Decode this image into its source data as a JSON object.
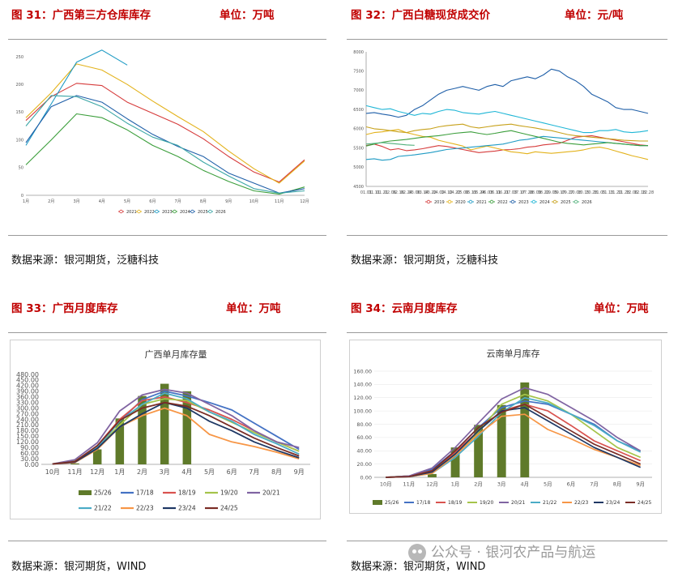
{
  "panels": [
    {
      "figure": "图 31：广西第三方仓库库存",
      "unit": "单位：万吨",
      "source": "数据来源：银河期货，泛糖科技",
      "chart_data": {
        "type": "line",
        "categories": [
          "1月",
          "2月",
          "3月",
          "4月",
          "5月",
          "6月",
          "7月",
          "8月",
          "9月",
          "10月",
          "11月",
          "12月"
        ],
        "ylim": [
          0,
          250
        ],
        "yticks": [
          0,
          50,
          100,
          150,
          200,
          250
        ],
        "legend_position": "bottom",
        "series": [
          {
            "name": "2021",
            "color": "#d63b3b",
            "values": [
              135,
              178,
              202,
              198,
              168,
              148,
              128,
              102,
              70,
              42,
              24,
              64
            ]
          },
          {
            "name": "2022",
            "color": "#e3b21b",
            "values": [
              140,
              185,
              237,
              226,
              200,
              170,
              142,
              115,
              80,
              48,
              22,
              62
            ]
          },
          {
            "name": "2023",
            "color": "#1f9bc4",
            "values": [
              90,
              165,
              240,
              262,
              235,
              null,
              null,
              null,
              null,
              null,
              null,
              null
            ]
          },
          {
            "name": "2024",
            "color": "#3b9e3b",
            "values": [
              55,
              100,
              147,
              140,
              118,
              90,
              70,
              45,
              25,
              8,
              2,
              15
            ]
          },
          {
            "name": "2025",
            "color": "#1f5fa8",
            "values": [
              95,
              160,
              180,
              168,
              138,
              110,
              88,
              70,
              40,
              22,
              4,
              12
            ]
          },
          {
            "name": "2026",
            "color": "#3ba6a6",
            "values": [
              125,
              180,
              178,
              160,
              130,
              105,
              90,
              60,
              35,
              12,
              4,
              8
            ]
          }
        ]
      }
    },
    {
      "figure": "图 32：广西白糖现货成交价",
      "unit": "单位：元/吨",
      "source": "数据来源：银河期货，泛糖科技",
      "chart_data": {
        "type": "line",
        "categories": [
          "01.01",
          "01.11",
          "01.21",
          "02.06",
          "02.16",
          "02.24",
          "03.06",
          "03.14",
          "03.22",
          "04.02",
          "04.12",
          "04.22",
          "05.06",
          "05.15",
          "05.24",
          "06.03",
          "06.11",
          "06.21",
          "07.03",
          "07.17",
          "07.28",
          "08.09",
          "08.22",
          "09.05",
          "09.17",
          "09.27",
          "10.08",
          "10.15",
          "10.28",
          "11.05",
          "11.13",
          "11.20",
          "11.28",
          "12.06",
          "12.18",
          "12.28"
        ],
        "ylim": [
          4500,
          8000
        ],
        "yticks": [
          4500,
          5000,
          5500,
          6000,
          6500,
          7000,
          7500,
          8000
        ],
        "legend_position": "bottom",
        "series": [
          {
            "name": "2019",
            "color": "#d63b3b",
            "values": [
              5560,
              5600,
              5540,
              5450,
              5480,
              5430,
              5450,
              5480,
              5520,
              5560,
              5540,
              5500,
              5460,
              5420,
              5380,
              5400,
              5420,
              5450,
              5460,
              5480,
              5520,
              5540,
              5580,
              5600,
              5620,
              5700,
              5780,
              5800,
              5820,
              5780,
              5740,
              5700,
              5660,
              5620,
              5580,
              5560
            ]
          },
          {
            "name": "2020",
            "color": "#e3b21b",
            "values": [
              5850,
              5900,
              5920,
              5950,
              5980,
              5900,
              5850,
              5800,
              5780,
              5700,
              5650,
              5600,
              5550,
              5450,
              5500,
              5550,
              5500,
              5450,
              5400,
              5380,
              5350,
              5400,
              5380,
              5360,
              5380,
              5400,
              5420,
              5450,
              5500,
              5520,
              5480,
              5420,
              5360,
              5300,
              5250,
              5200
            ]
          },
          {
            "name": "2021",
            "color": "#1f9bc4",
            "values": [
              5200,
              5220,
              5180,
              5200,
              5280,
              5300,
              5320,
              5350,
              5380,
              5420,
              5460,
              5480,
              5500,
              5520,
              5540,
              5560,
              5580,
              5600,
              5650,
              5700,
              5720,
              5760,
              5800,
              5780,
              5760,
              5740,
              5720,
              5700,
              5680,
              5660,
              5640,
              5620,
              5600,
              5580,
              5560,
              5560
            ]
          },
          {
            "name": "2022",
            "color": "#3b9e3b",
            "values": [
              5550,
              5600,
              5650,
              5680,
              5700,
              5720,
              5750,
              5780,
              5800,
              5820,
              5850,
              5880,
              5900,
              5920,
              5880,
              5850,
              5880,
              5920,
              5950,
              5900,
              5850,
              5800,
              5750,
              5700,
              5650,
              5620,
              5600,
              5580,
              5600,
              5620,
              5640,
              5620,
              5600,
              5580,
              5560,
              5560
            ]
          },
          {
            "name": "2023",
            "color": "#1f5fa8",
            "values": [
              6400,
              6420,
              6380,
              6350,
              6300,
              6350,
              6500,
              6600,
              6750,
              6900,
              7000,
              7050,
              7100,
              7050,
              7000,
              7100,
              7150,
              7100,
              7250,
              7300,
              7350,
              7300,
              7400,
              7550,
              7500,
              7350,
              7250,
              7100,
              6900,
              6800,
              6700,
              6550,
              6500,
              6500,
              6450,
              6400
            ]
          },
          {
            "name": "2024",
            "color": "#1fb6d6",
            "values": [
              6600,
              6550,
              6500,
              6520,
              6450,
              6400,
              6350,
              6400,
              6380,
              6450,
              6500,
              6480,
              6420,
              6400,
              6380,
              6420,
              6450,
              6400,
              6350,
              6300,
              6250,
              6200,
              6150,
              6100,
              6050,
              6000,
              5950,
              5900,
              5900,
              5950,
              5950,
              5980,
              5920,
              5900,
              5920,
              5950
            ]
          },
          {
            "name": "2025",
            "color": "#c7a11a",
            "values": [
              6050,
              6000,
              5980,
              5950,
              5920,
              5900,
              5950,
              5980,
              6000,
              6050,
              6080,
              6100,
              6120,
              6050,
              6020,
              6050,
              6080,
              6100,
              6120,
              6080,
              6050,
              6020,
              5980,
              5950,
              5900,
              5850,
              5820,
              5800,
              5780,
              5760,
              5740,
              5720,
              5700,
              5690,
              5680,
              5680
            ]
          },
          {
            "name": "2026",
            "color": "#4fb07a",
            "values": [
              5600,
              5620,
              5640,
              5620,
              5600,
              5580,
              5570,
              null,
              null,
              null,
              null,
              null,
              null,
              null,
              null,
              null,
              null,
              null,
              null,
              null,
              null,
              null,
              null,
              null,
              null,
              null,
              null,
              null,
              null,
              null,
              null,
              null,
              null,
              null,
              null,
              null
            ]
          }
        ]
      }
    },
    {
      "figure": "图 33：广西月度库存",
      "unit": "单位：万吨",
      "source": "数据来源：银河期货，WIND",
      "chart_data": {
        "type": "bar",
        "title": "广西单月库存量",
        "categories": [
          "10月",
          "11月",
          "12月",
          "1月",
          "2月",
          "3月",
          "4月",
          "5月",
          "6月",
          "7月",
          "8月",
          "9月"
        ],
        "ylim": [
          0,
          480
        ],
        "yticks": [
          0,
          30,
          60,
          90,
          120,
          150,
          180,
          210,
          240,
          270,
          300,
          330,
          360,
          390,
          420,
          450,
          480
        ],
        "tick_decimals": 2,
        "legend_position": "bottom",
        "bar_series": {
          "name": "25/26",
          "color": "#5f7a2a",
          "values": [
            0,
            5,
            80,
            245,
            365,
            430,
            390,
            null,
            null,
            null,
            null,
            null
          ]
        },
        "series": [
          {
            "name": "17/18",
            "color": "#4472c4",
            "values": [
              2,
              12,
              95,
              230,
              345,
              390,
              365,
              330,
              290,
              220,
              150,
              80
            ]
          },
          {
            "name": "18/19",
            "color": "#d9534f",
            "values": [
              2,
              10,
              100,
              240,
              340,
              360,
              330,
              290,
              240,
              180,
              120,
              70
            ]
          },
          {
            "name": "19/20",
            "color": "#a5c44a",
            "values": [
              2,
              18,
              90,
              210,
              320,
              350,
              340,
              280,
              225,
              170,
              120,
              70
            ]
          },
          {
            "name": "20/21",
            "color": "#8064a2",
            "values": [
              2,
              25,
              115,
              285,
              370,
              400,
              380,
              320,
              260,
              180,
              120,
              90
            ]
          },
          {
            "name": "21/22",
            "color": "#4bacc6",
            "values": [
              2,
              15,
              90,
              230,
              320,
              380,
              350,
              280,
              230,
              160,
              110,
              55
            ]
          },
          {
            "name": "22/23",
            "color": "#f79646",
            "values": [
              2,
              10,
              80,
              200,
              260,
              300,
              260,
              160,
              120,
              95,
              65,
              30
            ]
          },
          {
            "name": "23/24",
            "color": "#1f3864",
            "values": [
              2,
              12,
              85,
              200,
              270,
              330,
              300,
              230,
              180,
              120,
              75,
              35
            ]
          },
          {
            "name": "24/25",
            "color": "#7b2d26",
            "values": [
              2,
              15,
              100,
              235,
              300,
              330,
              310,
              260,
              200,
              140,
              90,
              45
            ]
          }
        ]
      }
    },
    {
      "figure": "图 34：云南月度库存",
      "unit": "单位：万吨",
      "source": "数据来源：银河期货，WIND",
      "chart_data": {
        "type": "bar",
        "title": "云南单月库存",
        "categories": [
          "10月",
          "11月",
          "12月",
          "1月",
          "2月",
          "3月",
          "4月",
          "5月",
          "6月",
          "7月",
          "8月",
          "9月"
        ],
        "ylim": [
          0,
          160
        ],
        "yticks": [
          0,
          20,
          40,
          60,
          80,
          100,
          120,
          140,
          160
        ],
        "tick_decimals": 2,
        "legend_position": "bottom",
        "bar_series": {
          "name": "25/26",
          "color": "#5f7a2a",
          "values": [
            0,
            0,
            5,
            45,
            79,
            109,
            143,
            null,
            null,
            null,
            null,
            null
          ]
        },
        "series": [
          {
            "name": "17/18",
            "color": "#4472c4",
            "values": [
              0,
              2,
              12,
              40,
              75,
              105,
              115,
              110,
              95,
              80,
              55,
              40
            ]
          },
          {
            "name": "18/19",
            "color": "#d9534f",
            "values": [
              0,
              2,
              10,
              38,
              70,
              100,
              110,
              100,
              78,
              55,
              40,
              25
            ]
          },
          {
            "name": "19/20",
            "color": "#a5c44a",
            "values": [
              0,
              2,
              8,
              35,
              68,
              110,
              125,
              115,
              95,
              70,
              45,
              30
            ]
          },
          {
            "name": "20/21",
            "color": "#8064a2",
            "values": [
              0,
              2,
              14,
              45,
              82,
              118,
              135,
              125,
              105,
              85,
              60,
              40
            ]
          },
          {
            "name": "21/22",
            "color": "#4bacc6",
            "values": [
              0,
              1,
              6,
              30,
              62,
              98,
              120,
              112,
              95,
              78,
              55,
              38
            ]
          },
          {
            "name": "22/23",
            "color": "#f79646",
            "values": [
              0,
              1,
              6,
              33,
              65,
              92,
              95,
              72,
              58,
              42,
              30,
              18
            ]
          },
          {
            "name": "23/24",
            "color": "#1f3864",
            "values": [
              0,
              1,
              8,
              35,
              70,
              100,
              105,
              85,
              65,
              45,
              30,
              15
            ]
          },
          {
            "name": "24/25",
            "color": "#7b2d26",
            "values": [
              0,
              1,
              10,
              40,
              75,
              98,
              110,
              90,
              70,
              50,
              35,
              20
            ]
          }
        ]
      }
    }
  ],
  "watermark": "公众号 · 银河农产品与航运"
}
